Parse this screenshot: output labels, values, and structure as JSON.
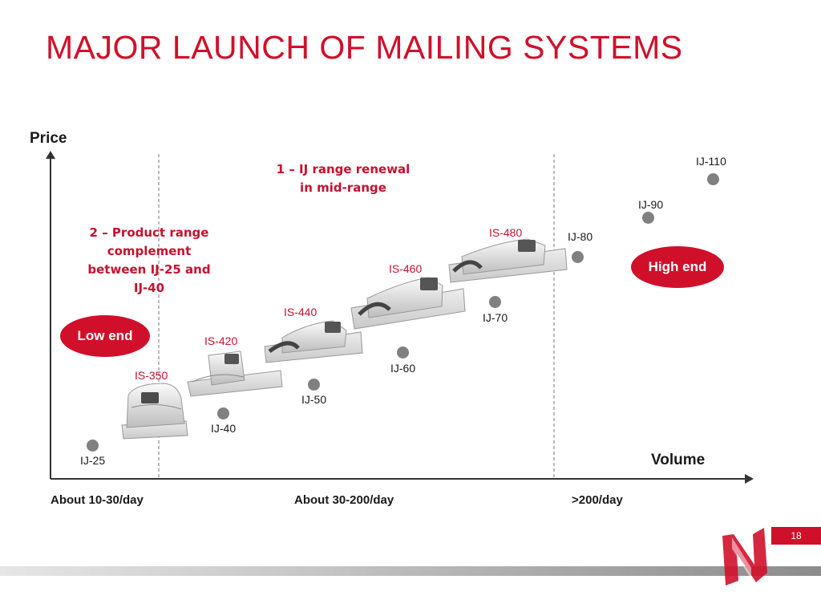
{
  "title": "MAJOR LAUNCH OF MAILING SYSTEMS",
  "axes": {
    "y_label": "Price",
    "x_label": "Volume"
  },
  "annotations": {
    "ij_renewal": [
      "1 – IJ range renewal",
      "in mid-range"
    ],
    "complement": [
      "2 – Product range",
      "complement",
      "between IJ-25 and",
      "IJ-40"
    ]
  },
  "segments": {
    "low": "Low end",
    "high": "High end"
  },
  "volume_ranges": [
    "About 10-30/day",
    "About 30-200/day",
    ">200/day"
  ],
  "ij_models": [
    "IJ-25",
    "IJ-40",
    "IJ-50",
    "IJ-60",
    "IJ-70",
    "IJ-80",
    "IJ-90",
    "IJ-110"
  ],
  "is_models": [
    "IS-350",
    "IS-420",
    "IS-440",
    "IS-460",
    "IS-480"
  ],
  "page_number": "18",
  "colors": {
    "accent": "#d0102a",
    "dot": "#808080",
    "axis": "#333333"
  }
}
